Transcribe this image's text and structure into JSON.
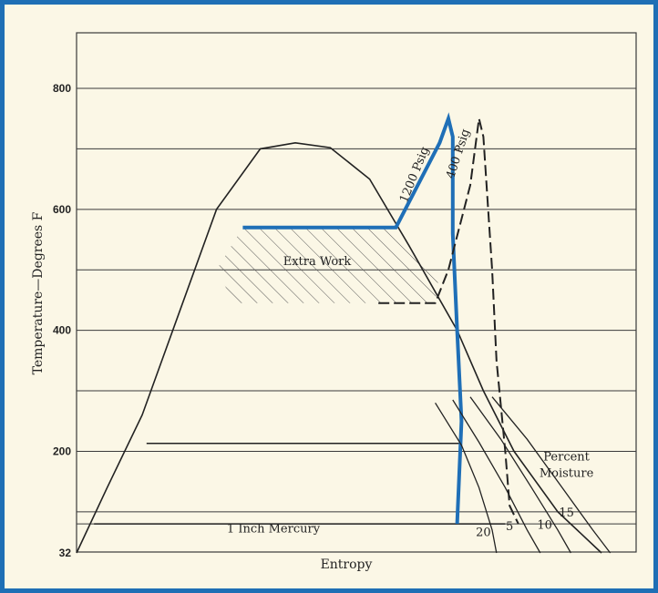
{
  "colors": {
    "frame": "#1e6fb5",
    "background": "#fbf7e6",
    "ink": "#222222",
    "grid": "#3a3a3a",
    "highlight": "#1f6fb7"
  },
  "chart_data": {
    "type": "line",
    "title": "",
    "xlabel": "Entropy",
    "ylabel": "Temperature—Degrees F",
    "ylim": [
      32,
      860
    ],
    "yticks": [
      32,
      200,
      400,
      600,
      800
    ],
    "ytick_labels": [
      "32",
      "200",
      "400",
      "600",
      "800"
    ],
    "grid": true,
    "x_scale": "unitless (no tick values printed)",
    "gridlines_y": [
      80,
      100,
      200,
      300,
      400,
      500,
      600,
      700,
      800
    ],
    "series": [
      {
        "name": "",
        "role": "saturation dome",
        "points": [
          [
            0,
            32
          ],
          [
            7,
            140
          ],
          [
            15,
            260
          ],
          [
            23,
            420
          ],
          [
            32,
            600
          ],
          [
            42,
            700
          ],
          [
            50,
            710
          ],
          [
            58,
            702
          ],
          [
            67,
            650
          ],
          [
            76,
            540
          ],
          [
            87,
            400
          ],
          [
            93,
            300
          ],
          [
            100,
            200
          ],
          [
            110,
            100
          ],
          [
            120,
            32
          ]
        ]
      },
      {
        "name": "1200 Psig",
        "role": "higher-pressure cycle (highlighted)",
        "points": [
          [
            38,
            570
          ],
          [
            73,
            570
          ],
          [
            83,
            710
          ],
          [
            85,
            750
          ],
          [
            86,
            720
          ],
          [
            86,
            560
          ],
          [
            87,
            400
          ],
          [
            88,
            250
          ],
          [
            87,
            80
          ]
        ]
      },
      {
        "name": "400 Psig",
        "role": "lower-pressure cycle (dashed)",
        "points": [
          [
            69,
            445
          ],
          [
            82,
            445
          ],
          [
            85,
            500
          ],
          [
            90,
            640
          ],
          [
            92,
            750
          ],
          [
            93,
            720
          ],
          [
            95,
            500
          ],
          [
            96,
            350
          ],
          [
            98,
            200
          ],
          [
            99,
            110
          ],
          [
            101,
            80
          ]
        ]
      }
    ],
    "horizontal_lines": [
      {
        "y": 213,
        "x": [
          16,
          88
        ]
      },
      {
        "y": 80,
        "x": [
          4,
          98
        ],
        "label": "1 Inch Mercury"
      }
    ],
    "annotations": [
      {
        "text": "Extra Work",
        "x": 55,
        "y": 508
      },
      {
        "text": "1200 Psig",
        "x": 78,
        "y": 655
      },
      {
        "text": "400 Psig",
        "x": 88,
        "y": 690
      },
      {
        "text": "Percent",
        "x": 112,
        "y": 185
      },
      {
        "text": "Moisture",
        "x": 112,
        "y": 158
      },
      {
        "text": "5",
        "x": 99,
        "y": 70
      },
      {
        "text": "20",
        "x": 93,
        "y": 60
      },
      {
        "text": "10",
        "x": 107,
        "y": 72
      },
      {
        "text": "15",
        "x": 112,
        "y": 92
      }
    ],
    "moisture_lines": [
      {
        "label": "20",
        "points": [
          [
            82,
            280
          ],
          [
            88,
            210
          ],
          [
            92,
            140
          ],
          [
            95,
            70
          ],
          [
            96,
            32
          ]
        ]
      },
      {
        "label": "15",
        "points": [
          [
            86,
            285
          ],
          [
            92,
            215
          ],
          [
            98,
            140
          ],
          [
            103,
            70
          ],
          [
            106,
            32
          ]
        ]
      },
      {
        "label": "10",
        "points": [
          [
            90,
            290
          ],
          [
            97,
            220
          ],
          [
            104,
            140
          ],
          [
            110,
            70
          ],
          [
            113,
            32
          ]
        ]
      },
      {
        "label": "5",
        "points": [
          [
            95,
            290
          ],
          [
            103,
            220
          ],
          [
            111,
            140
          ],
          [
            118,
            70
          ],
          [
            122,
            32
          ]
        ]
      }
    ]
  }
}
